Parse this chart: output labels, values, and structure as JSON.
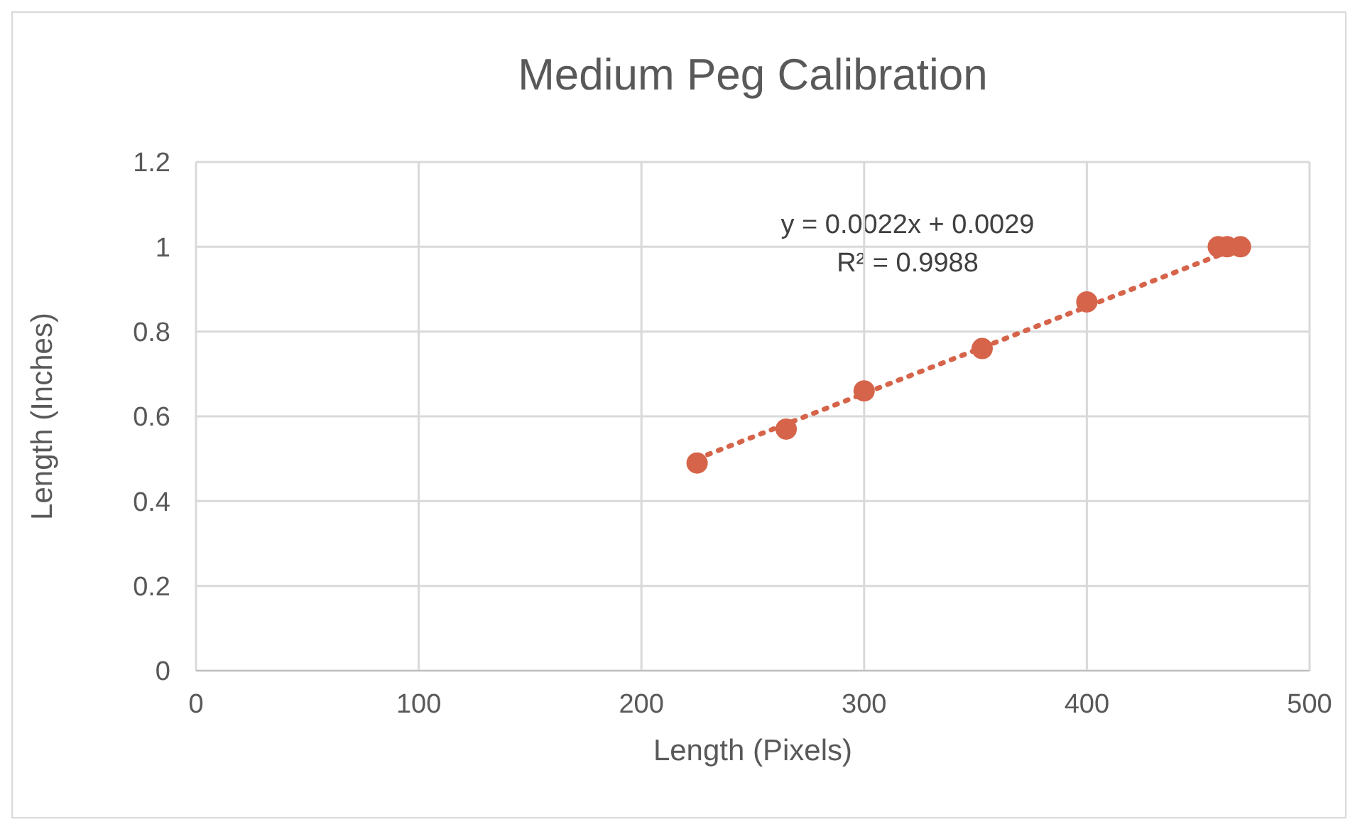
{
  "chart_data": {
    "type": "scatter",
    "title": "Medium Peg Calibration",
    "xlabel": "Length (Pixels)",
    "ylabel": "Length (Inches)",
    "series": [
      {
        "color": "#d6644a",
        "marker": "circle",
        "x": [
          225,
          265,
          300,
          353,
          400,
          459,
          463,
          469
        ],
        "values": [
          0.49,
          0.57,
          0.66,
          0.76,
          0.87,
          1.0,
          1.0,
          1.0
        ]
      },
      {
        "type": "line",
        "color": "#d6644a",
        "line_style": "dotted",
        "marker": "none",
        "x": [
          225,
          469
        ],
        "values": [
          0.5,
          1.0
        ]
      }
    ],
    "annotations": [
      "y = 0.0022x + 0.0029",
      "R² = 0.9988"
    ],
    "xlim": [
      0,
      500
    ],
    "xticks": [
      0,
      100,
      200,
      300,
      400,
      500
    ],
    "ylim": [
      0,
      1.2
    ],
    "yticks": [
      0,
      0.2,
      0.4,
      0.6,
      0.8,
      1,
      1.2
    ],
    "grid": true,
    "legend": false
  }
}
